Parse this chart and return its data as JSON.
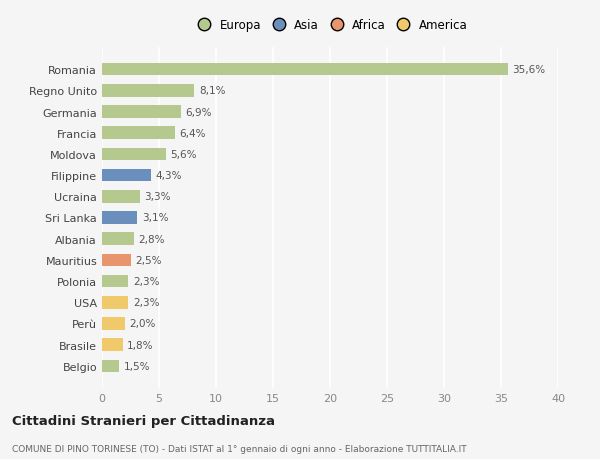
{
  "categories": [
    "Romania",
    "Regno Unito",
    "Germania",
    "Francia",
    "Moldova",
    "Filippine",
    "Ucraina",
    "Sri Lanka",
    "Albania",
    "Mauritius",
    "Polonia",
    "USA",
    "Perù",
    "Brasile",
    "Belgio"
  ],
  "values": [
    35.6,
    8.1,
    6.9,
    6.4,
    5.6,
    4.3,
    3.3,
    3.1,
    2.8,
    2.5,
    2.3,
    2.3,
    2.0,
    1.8,
    1.5
  ],
  "labels": [
    "35,6%",
    "8,1%",
    "6,9%",
    "6,4%",
    "5,6%",
    "4,3%",
    "3,3%",
    "3,1%",
    "2,8%",
    "2,5%",
    "2,3%",
    "2,3%",
    "2,0%",
    "1,8%",
    "1,5%"
  ],
  "continents": [
    "Europa",
    "Europa",
    "Europa",
    "Europa",
    "Europa",
    "Asia",
    "Europa",
    "Asia",
    "Europa",
    "Africa",
    "Europa",
    "America",
    "America",
    "America",
    "Europa"
  ],
  "continent_colors": {
    "Europa": "#b5c98e",
    "Asia": "#6b8fbc",
    "Africa": "#e8956d",
    "America": "#f0c96b"
  },
  "legend_entries": [
    "Europa",
    "Asia",
    "Africa",
    "America"
  ],
  "legend_colors": [
    "#b5c98e",
    "#6b8fbc",
    "#e8956d",
    "#f0c96b"
  ],
  "title": "Cittadini Stranieri per Cittadinanza",
  "subtitle": "COMUNE DI PINO TORINESE (TO) - Dati ISTAT al 1° gennaio di ogni anno - Elaborazione TUTTITALIA.IT",
  "xlim": [
    0,
    40
  ],
  "xticks": [
    0,
    5,
    10,
    15,
    20,
    25,
    30,
    35,
    40
  ],
  "background_color": "#f5f5f5",
  "grid_color": "#ffffff",
  "bar_height": 0.6
}
